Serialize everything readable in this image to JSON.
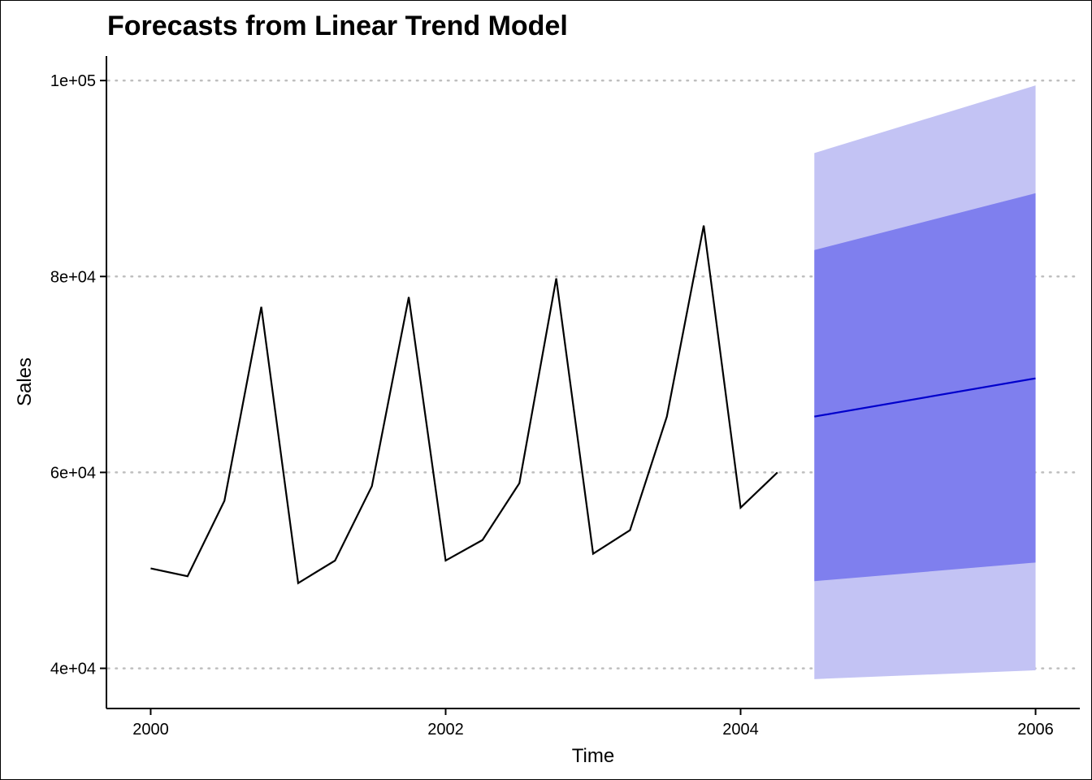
{
  "chart_data": {
    "type": "line",
    "title": "Forecasts from Linear Trend Model",
    "xlabel": "Time",
    "ylabel": "Sales",
    "xlim": [
      1999.7,
      2006.3
    ],
    "ylim": [
      35900,
      102500
    ],
    "x_ticks": [
      2000,
      2002,
      2004,
      2006
    ],
    "x_tick_labels": [
      "2000",
      "2002",
      "2004",
      "2006"
    ],
    "y_ticks": [
      40000,
      60000,
      80000,
      100000
    ],
    "y_tick_labels": [
      "4e+04",
      "6e+04",
      "8e+04",
      "1e+05"
    ],
    "grid": "horizontal dotted",
    "colors": {
      "observed": "#000000",
      "forecast": "#0000cc",
      "band80": "#7f7fee",
      "band95": "#c3c3f4",
      "grid": "#bebebe"
    },
    "series": [
      {
        "x": [
          2000.0,
          2000.25,
          2000.5,
          2000.75,
          2001.0,
          2001.25,
          2001.5,
          2001.75,
          2002.0,
          2002.25,
          2002.5,
          2002.75,
          2003.0,
          2003.25,
          2003.5,
          2003.75,
          2004.0,
          2004.25
        ],
        "values": [
          50200,
          49400,
          57100,
          76900,
          48700,
          51000,
          58600,
          77900,
          51000,
          53100,
          58900,
          79800,
          51700,
          54100,
          65700,
          85200,
          56400,
          60000
        ]
      },
      {
        "x": [
          2004.5,
          2006.0
        ],
        "values": [
          65700,
          69600
        ],
        "lo80": [
          48900,
          50800
        ],
        "hi80": [
          82700,
          88500
        ],
        "lo95": [
          38900,
          39800
        ],
        "hi95": [
          92600,
          99500
        ]
      }
    ]
  }
}
